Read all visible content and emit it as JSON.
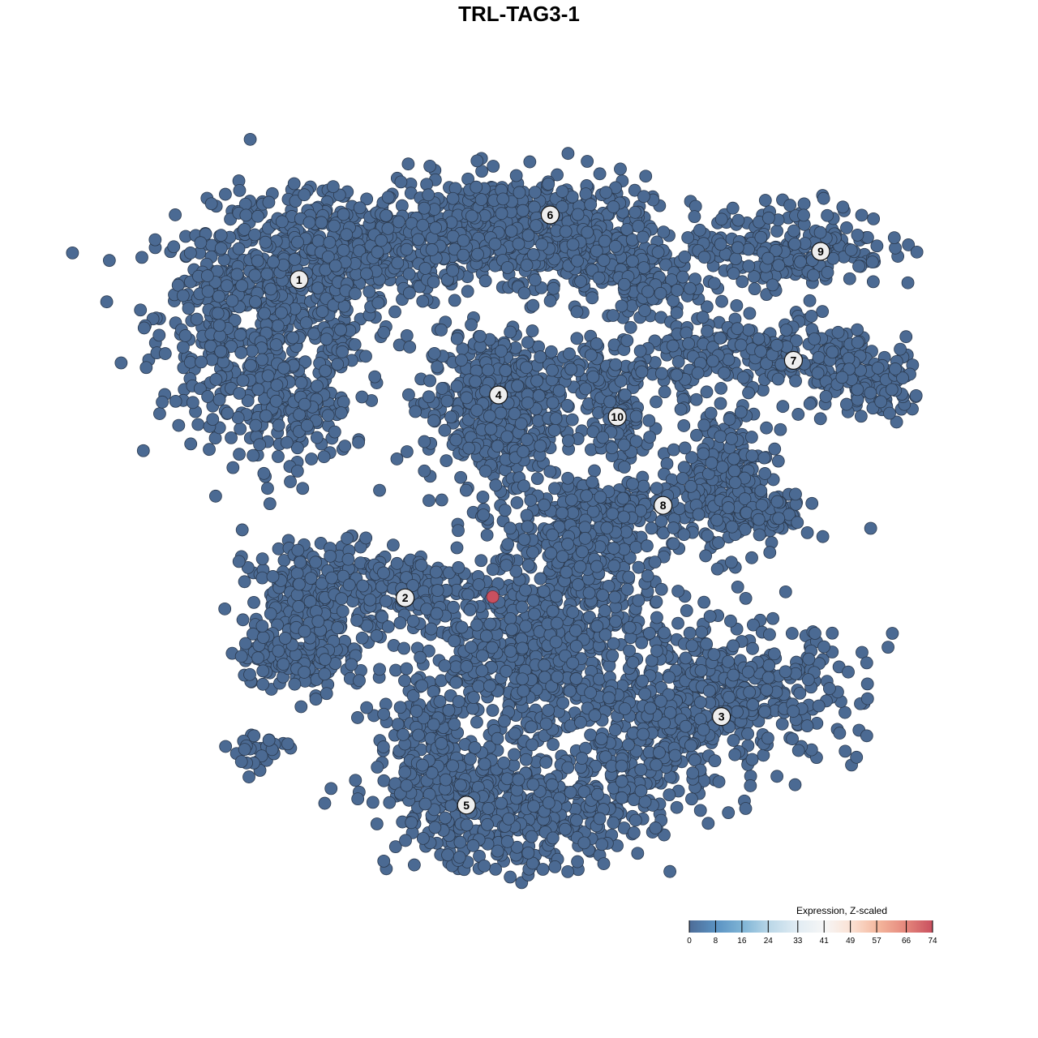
{
  "chart_data": {
    "type": "scatter",
    "title": "TRL-TAG3-1",
    "xlabel": "",
    "ylabel": "",
    "grid": false,
    "axes_visible": false,
    "point_color_default": "#4b6a93",
    "point_stroke": "#2b3a4f",
    "cluster_labels": [
      {
        "label": "1",
        "x": -22.6,
        "y": 24.6
      },
      {
        "label": "2",
        "x": -11.7,
        "y": -8.1
      },
      {
        "label": "3",
        "x": 20.8,
        "y": -20.3
      },
      {
        "label": "4",
        "x": -2.1,
        "y": 12.75
      },
      {
        "label": "5",
        "x": -5.4,
        "y": -29.4
      },
      {
        "label": "6",
        "x": 3.2,
        "y": 31.25
      },
      {
        "label": "7",
        "x": 28.2,
        "y": 16.3
      },
      {
        "label": "8",
        "x": 14.8,
        "y": 1.4
      },
      {
        "label": "9",
        "x": 31.0,
        "y": 27.5
      },
      {
        "label": "10",
        "x": 10.1,
        "y": 10.5
      }
    ],
    "point_clouds_note_fields": [
      "cx",
      "cy",
      "sd_x",
      "sd_y",
      "n"
    ],
    "point_clouds": [
      [
        -25,
        21,
        6,
        5.5,
        550
      ],
      [
        -17,
        28,
        7,
        3,
        350
      ],
      [
        -24,
        11,
        3.5,
        3,
        140
      ],
      [
        -31,
        19,
        2,
        4,
        60
      ],
      [
        -1,
        30,
        7,
        2.6,
        500
      ],
      [
        8,
        27,
        4,
        2.4,
        200
      ],
      [
        14,
        24,
        2.5,
        2,
        80
      ],
      [
        -2.5,
        11.5,
        3.6,
        4,
        450
      ],
      [
        28,
        28,
        5,
        2.2,
        220
      ],
      [
        25,
        17,
        6,
        2,
        250
      ],
      [
        36,
        13.5,
        3,
        1.8,
        120
      ],
      [
        10,
        11,
        1.8,
        2.6,
        90
      ],
      [
        8,
        15.5,
        4,
        1.2,
        80
      ],
      [
        21,
        4,
        2.5,
        3.8,
        200
      ],
      [
        25,
        0.5,
        2.6,
        1.6,
        110
      ],
      [
        10,
        1.5,
        4.5,
        1.4,
        150
      ],
      [
        -20,
        -7.5,
        4,
        2.6,
        220
      ],
      [
        -23,
        -14,
        3,
        1.8,
        150
      ],
      [
        -12,
        -6.5,
        3,
        1.5,
        100
      ],
      [
        -27,
        -24,
        1.6,
        1.2,
        30
      ],
      [
        21,
        -18,
        7,
        3.6,
        450
      ],
      [
        14,
        -24,
        3,
        3,
        150
      ],
      [
        0,
        -30,
        6.5,
        3,
        500
      ],
      [
        -9,
        -24,
        2.5,
        3,
        150
      ],
      [
        1,
        -13,
        6.5,
        5,
        700
      ],
      [
        6,
        -2.5,
        4,
        2.6,
        200
      ]
    ],
    "highlighted_points": [
      {
        "x": -2.7,
        "y": -8.0,
        "value": 74
      }
    ],
    "colorbar": {
      "title": "Expression, Z-scaled",
      "ticks": [
        0,
        8,
        16,
        24,
        33,
        41,
        49,
        57,
        66,
        74
      ],
      "range": [
        0,
        74
      ],
      "colors": [
        "#4d6c97",
        "#5b93c3",
        "#80b5d6",
        "#bcd8e8",
        "#e1ecf3",
        "#f6f6f6",
        "#fbe1d3",
        "#f4b69c",
        "#e5877c",
        "#c9505f"
      ],
      "position": "bottom-right"
    }
  }
}
